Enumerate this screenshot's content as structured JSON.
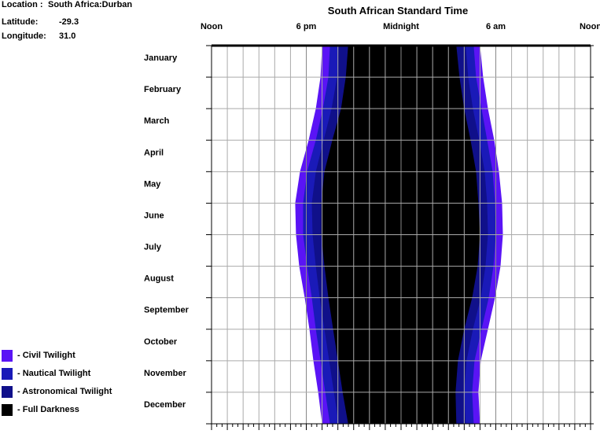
{
  "info": {
    "location_label": "Location :",
    "location_value": "South Africa:Durban",
    "latitude_label": "Latitude:",
    "latitude_value": "-29.3",
    "longitude_label": "Longitude:",
    "longitude_value": "31.0"
  },
  "chart_data": {
    "type": "area",
    "title": "South African Standard Time",
    "x_axis": {
      "range_hours": [
        12,
        36
      ],
      "tick_labels": [
        {
          "hour": 12,
          "label": "Noon"
        },
        {
          "hour": 18,
          "label": "6 pm"
        },
        {
          "hour": 24,
          "label": "Midnight"
        },
        {
          "hour": 30,
          "label": "6 am"
        },
        {
          "hour": 36,
          "label": "Noon"
        }
      ]
    },
    "y_axis": {
      "months": [
        "January",
        "February",
        "March",
        "April",
        "May",
        "June",
        "July",
        "August",
        "September",
        "October",
        "November",
        "December"
      ]
    },
    "grid": true,
    "legend": [
      {
        "name": "- Civil Twilight",
        "color": "#5a14f5"
      },
      {
        "name": "- Nautical Twilight",
        "color": "#1a1ab8"
      },
      {
        "name": "- Astronomical Twilight",
        "color": "#10108a"
      },
      {
        "name": "- Full Darkness",
        "color": "#000000"
      }
    ],
    "sample_points": [
      "Jan 1",
      "Feb 1",
      "Mar 1",
      "Apr 1",
      "May 1",
      "Jun 1",
      "Jul 1",
      "Aug 1",
      "Sep 1",
      "Oct 1",
      "Nov 1",
      "Dec 1",
      "Dec 31"
    ],
    "sunset_hours": [
      19.0,
      18.9,
      18.6,
      18.15,
      17.6,
      17.3,
      17.35,
      17.55,
      17.9,
      18.2,
      18.45,
      18.75,
      19.0
    ],
    "civil_dusk": [
      19.5,
      19.4,
      19.05,
      18.6,
      18.05,
      17.8,
      17.8,
      18.05,
      18.35,
      18.6,
      18.9,
      19.2,
      19.5
    ],
    "nautical_dusk": [
      20.05,
      19.95,
      19.6,
      19.1,
      18.6,
      18.35,
      18.4,
      18.6,
      18.85,
      19.15,
      19.45,
      19.75,
      20.05
    ],
    "astro_dusk": [
      20.65,
      20.5,
      20.2,
      19.65,
      19.15,
      18.95,
      18.95,
      19.15,
      19.4,
      19.7,
      20.0,
      20.3,
      20.65
    ],
    "astro_dawn": [
      27.5,
      27.7,
      28.0,
      28.4,
      28.75,
      28.9,
      29.0,
      28.85,
      28.5,
      28.0,
      27.6,
      27.45,
      27.5
    ],
    "nautical_dawn": [
      28.1,
      28.25,
      28.55,
      28.95,
      29.3,
      29.45,
      29.5,
      29.35,
      29.05,
      28.55,
      28.15,
      28.0,
      28.1
    ],
    "civil_dawn": [
      28.6,
      28.75,
      29.1,
      29.45,
      29.8,
      29.95,
      30.0,
      29.85,
      29.55,
      29.1,
      28.65,
      28.5,
      28.6
    ],
    "sunrise_hours": [
      29.0,
      29.2,
      29.5,
      29.9,
      30.2,
      30.4,
      30.45,
      30.3,
      29.95,
      29.5,
      29.05,
      28.9,
      29.0
    ]
  }
}
